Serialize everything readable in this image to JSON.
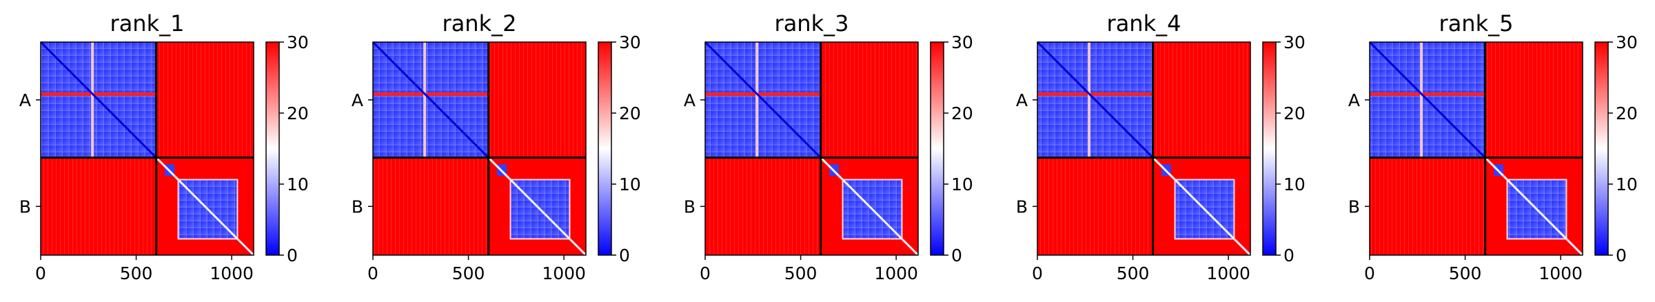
{
  "figure": {
    "colormap": "bwr"
  },
  "chart_data": [
    {
      "type": "heatmap",
      "title": "rank_1",
      "chains": [
        {
          "label": "A",
          "start": 0,
          "end": 605
        },
        {
          "label": "B",
          "start": 605,
          "end": 1115
        }
      ],
      "x_ticks": [
        0,
        500,
        1000
      ],
      "x_tick_labels": [
        "0",
        "500",
        "1000"
      ],
      "xlim": [
        0,
        1115
      ],
      "colorbar": {
        "min": 0,
        "max": 30,
        "ticks": [
          0,
          10,
          20,
          30
        ],
        "tick_labels": [
          "0",
          "10",
          "20",
          "30"
        ],
        "colors": [
          "#0000ff",
          "#ffffff",
          "#ff0000"
        ]
      },
      "stripes": {
        "A_rows": [
          271
        ],
        "A_cols": [
          271
        ]
      }
    },
    {
      "type": "heatmap",
      "title": "rank_2",
      "chains": [
        {
          "label": "A",
          "start": 0,
          "end": 605
        },
        {
          "label": "B",
          "start": 605,
          "end": 1115
        }
      ],
      "x_ticks": [
        0,
        500,
        1000
      ],
      "x_tick_labels": [
        "0",
        "500",
        "1000"
      ],
      "xlim": [
        0,
        1115
      ],
      "colorbar": {
        "min": 0,
        "max": 30,
        "ticks": [
          0,
          10,
          20,
          30
        ],
        "tick_labels": [
          "0",
          "10",
          "20",
          "30"
        ],
        "colors": [
          "#0000ff",
          "#ffffff",
          "#ff0000"
        ]
      },
      "stripes": {
        "A_rows": [
          271
        ],
        "A_cols": [
          271
        ]
      }
    },
    {
      "type": "heatmap",
      "title": "rank_3",
      "chains": [
        {
          "label": "A",
          "start": 0,
          "end": 605
        },
        {
          "label": "B",
          "start": 605,
          "end": 1115
        }
      ],
      "x_ticks": [
        0,
        500,
        1000
      ],
      "x_tick_labels": [
        "0",
        "500",
        "1000"
      ],
      "xlim": [
        0,
        1115
      ],
      "colorbar": {
        "min": 0,
        "max": 30,
        "ticks": [
          0,
          10,
          20,
          30
        ],
        "tick_labels": [
          "0",
          "10",
          "20",
          "30"
        ],
        "colors": [
          "#0000ff",
          "#ffffff",
          "#ff0000"
        ]
      },
      "stripes": {
        "A_rows": [
          271
        ],
        "A_cols": [
          271
        ]
      }
    },
    {
      "type": "heatmap",
      "title": "rank_4",
      "chains": [
        {
          "label": "A",
          "start": 0,
          "end": 605
        },
        {
          "label": "B",
          "start": 605,
          "end": 1115
        }
      ],
      "x_ticks": [
        0,
        500,
        1000
      ],
      "x_tick_labels": [
        "0",
        "500",
        "1000"
      ],
      "xlim": [
        0,
        1115
      ],
      "colorbar": {
        "min": 0,
        "max": 30,
        "ticks": [
          0,
          10,
          20,
          30
        ],
        "tick_labels": [
          "0",
          "10",
          "20",
          "30"
        ],
        "colors": [
          "#0000ff",
          "#ffffff",
          "#ff0000"
        ]
      },
      "stripes": {
        "A_rows": [
          271
        ],
        "A_cols": [
          271
        ]
      }
    },
    {
      "type": "heatmap",
      "title": "rank_5",
      "chains": [
        {
          "label": "A",
          "start": 0,
          "end": 605
        },
        {
          "label": "B",
          "start": 605,
          "end": 1115
        }
      ],
      "x_ticks": [
        0,
        500,
        1000
      ],
      "x_tick_labels": [
        "0",
        "500",
        "1000"
      ],
      "xlim": [
        0,
        1115
      ],
      "colorbar": {
        "min": 0,
        "max": 30,
        "ticks": [
          0,
          10,
          20,
          30
        ],
        "tick_labels": [
          "0",
          "10",
          "20",
          "30"
        ],
        "colors": [
          "#0000ff",
          "#ffffff",
          "#ff0000"
        ]
      },
      "stripes": {
        "A_rows": [
          271
        ],
        "A_cols": [
          271
        ]
      }
    }
  ]
}
